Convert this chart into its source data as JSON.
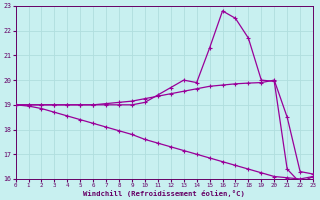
{
  "xlabel": "Windchill (Refroidissement éolien,°C)",
  "bg_color": "#c8f0f0",
  "line_color": "#990099",
  "grid_color": "#b0dede",
  "xmin": 0,
  "xmax": 23,
  "ymin": 16,
  "ymax": 23,
  "line_upper_x": [
    0,
    1,
    2,
    3,
    4,
    5,
    6,
    7,
    8,
    9,
    10,
    11,
    12,
    13,
    14,
    15,
    16,
    17,
    18,
    19,
    20,
    21,
    22,
    23
  ],
  "line_upper_y": [
    19,
    19,
    19,
    19,
    19,
    19,
    19,
    19,
    19,
    19,
    19.1,
    19.4,
    19.7,
    20.0,
    19.9,
    21.3,
    22.8,
    22.5,
    21.7,
    20.0,
    19.95,
    16.4,
    15.85,
    16.1
  ],
  "line_mid_x": [
    0,
    1,
    2,
    3,
    4,
    5,
    6,
    7,
    8,
    9,
    10,
    11,
    12,
    13,
    14,
    15,
    16,
    17,
    18,
    19,
    20,
    21,
    22,
    23
  ],
  "line_mid_y": [
    19,
    19,
    19,
    19,
    19,
    19,
    19,
    19.05,
    19.1,
    19.15,
    19.25,
    19.35,
    19.45,
    19.55,
    19.65,
    19.75,
    19.8,
    19.85,
    19.88,
    19.9,
    20.0,
    18.5,
    16.3,
    16.2
  ],
  "line_low_x": [
    0,
    1,
    2,
    3,
    4,
    5,
    6,
    7,
    8,
    9,
    10,
    11,
    12,
    13,
    14,
    15,
    16,
    17,
    18,
    19,
    20,
    21,
    22,
    23
  ],
  "line_low_y": [
    19,
    18.95,
    18.85,
    18.7,
    18.55,
    18.4,
    18.25,
    18.1,
    17.95,
    17.8,
    17.6,
    17.45,
    17.3,
    17.15,
    17.0,
    16.85,
    16.7,
    16.55,
    16.4,
    16.25,
    16.1,
    16.05,
    16.0,
    16.1
  ]
}
